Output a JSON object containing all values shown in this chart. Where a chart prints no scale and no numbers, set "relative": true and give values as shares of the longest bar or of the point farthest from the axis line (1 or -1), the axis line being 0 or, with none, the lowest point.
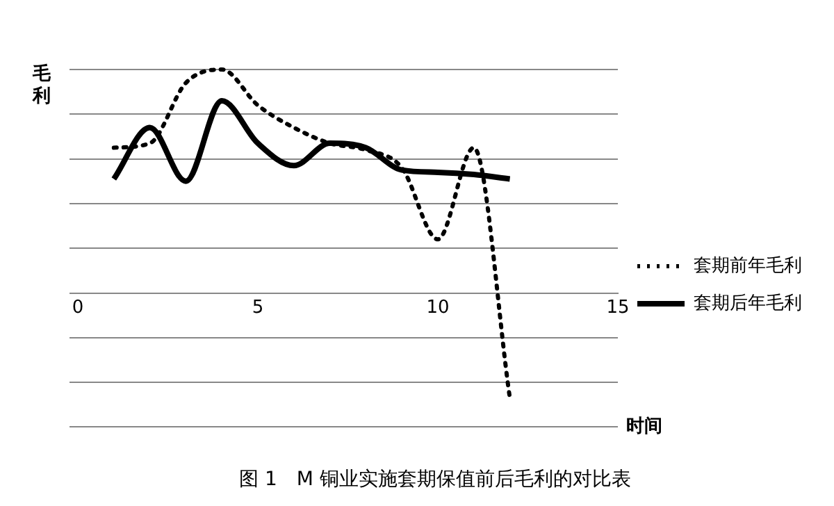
{
  "chart_data": {
    "type": "line",
    "title": "图 1　M 铜业实施套期保值前后毛利的对比表",
    "xlabel": "时间",
    "ylabel": "毛利",
    "x": [
      1,
      2,
      3,
      4,
      5,
      6,
      7,
      8,
      9,
      10,
      11,
      12
    ],
    "xlim": [
      0,
      15
    ],
    "xticks": [
      0,
      5,
      10,
      15
    ],
    "relative": true,
    "grid": "y",
    "legend": "right",
    "marker": "none",
    "series": [
      {
        "name": "套期前年毛利",
        "color": "#000000",
        "line_style": "dotted",
        "values": [
          0.65,
          0.67,
          0.94,
          1,
          0.84,
          0.74,
          0.67,
          0.64,
          0.56,
          0.24,
          0.65,
          -0.47
        ]
      },
      {
        "name": "套期后年毛利",
        "color": "#000000",
        "line_style": "solid",
        "values": [
          0.51,
          0.74,
          0.5,
          0.86,
          0.67,
          0.57,
          0.67,
          0.65,
          0.55,
          0.54,
          0.53,
          0.51
        ]
      }
    ]
  }
}
